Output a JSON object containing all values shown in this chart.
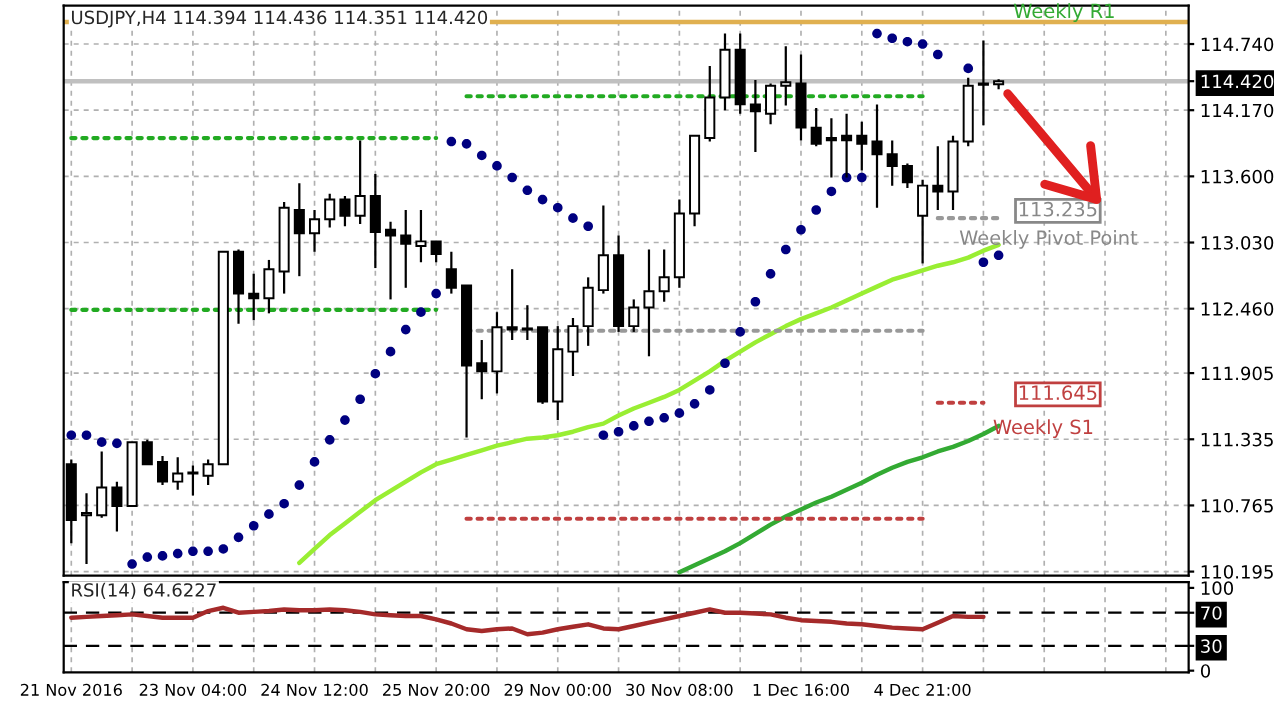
{
  "chart_data": [
    {
      "type": "candlestick",
      "title": "USDJPY,H4 114.394 114.436 114.351 114.420",
      "categories": [
        null,
        null,
        null,
        null,
        null,
        null,
        null,
        null,
        null,
        null,
        null,
        null,
        null,
        null,
        null,
        null,
        null,
        null,
        null,
        null,
        null,
        null,
        null,
        null,
        null,
        null,
        null,
        null,
        null,
        null,
        null,
        null,
        null,
        null,
        null,
        null,
        null,
        null,
        null,
        null,
        null,
        null,
        null,
        null,
        null,
        null,
        null,
        null,
        null,
        null,
        null,
        null,
        null,
        null,
        null,
        null,
        null,
        null,
        null,
        null,
        null,
        null,
        null,
        null,
        null,
        null,
        null,
        null,
        null,
        null,
        null,
        null,
        null,
        null
      ],
      "ohlc": [
        [
          111.12,
          111.16,
          110.44,
          110.64
        ],
        [
          110.68,
          110.87,
          110.26,
          110.7
        ],
        [
          110.68,
          111.23,
          110.66,
          110.92
        ],
        [
          110.92,
          110.97,
          110.54,
          110.76
        ],
        [
          110.76,
          111.31,
          110.76,
          111.31
        ],
        [
          111.31,
          111.33,
          111.12,
          111.12
        ],
        [
          111.14,
          111.19,
          110.94,
          110.97
        ],
        [
          110.97,
          111.18,
          110.9,
          111.04
        ],
        [
          111.04,
          111.11,
          110.85,
          111.05
        ],
        [
          111.02,
          111.16,
          110.94,
          111.12
        ],
        [
          111.12,
          112.95,
          111.12,
          112.95
        ],
        [
          112.95,
          112.97,
          112.33,
          112.59
        ],
        [
          112.59,
          112.76,
          112.36,
          112.55
        ],
        [
          112.55,
          112.88,
          112.42,
          112.8
        ],
        [
          112.78,
          113.38,
          112.59,
          113.33
        ],
        [
          113.31,
          113.54,
          112.74,
          113.11
        ],
        [
          113.11,
          113.31,
          112.95,
          113.23
        ],
        [
          113.23,
          113.45,
          113.16,
          113.4
        ],
        [
          113.4,
          113.43,
          113.17,
          113.26
        ],
        [
          113.26,
          113.91,
          113.19,
          113.43
        ],
        [
          113.43,
          113.62,
          112.81,
          113.12
        ],
        [
          113.14,
          113.21,
          112.54,
          113.09
        ],
        [
          113.09,
          113.31,
          112.64,
          113.02
        ],
        [
          113.0,
          113.31,
          112.86,
          113.04
        ],
        [
          113.04,
          113.04,
          112.86,
          112.93
        ],
        [
          112.8,
          112.95,
          112.59,
          112.64
        ],
        [
          112.66,
          112.66,
          111.35,
          111.97
        ],
        [
          111.99,
          112.19,
          111.68,
          111.92
        ],
        [
          111.92,
          112.43,
          111.73,
          112.3
        ],
        [
          112.3,
          112.8,
          112.19,
          112.28
        ],
        [
          112.28,
          112.49,
          112.19,
          112.29
        ],
        [
          112.3,
          112.3,
          111.64,
          111.66
        ],
        [
          111.66,
          112.31,
          111.5,
          112.11
        ],
        [
          112.09,
          112.38,
          111.88,
          112.31
        ],
        [
          112.31,
          112.73,
          112.14,
          112.64
        ],
        [
          112.62,
          113.35,
          112.59,
          112.92
        ],
        [
          112.92,
          113.09,
          112.26,
          112.31
        ],
        [
          112.31,
          112.54,
          112.26,
          112.47
        ],
        [
          112.47,
          112.97,
          112.05,
          112.61
        ],
        [
          112.61,
          112.97,
          112.52,
          112.73
        ],
        [
          112.73,
          113.4,
          112.64,
          113.28
        ],
        [
          113.28,
          113.95,
          113.17,
          113.95
        ],
        [
          113.93,
          114.55,
          113.9,
          114.28
        ],
        [
          114.28,
          114.83,
          114.17,
          114.69
        ],
        [
          114.69,
          114.83,
          114.14,
          114.22
        ],
        [
          114.22,
          114.43,
          113.81,
          114.16
        ],
        [
          114.14,
          114.4,
          114.05,
          114.38
        ],
        [
          114.38,
          114.72,
          114.21,
          114.41
        ],
        [
          114.4,
          114.65,
          113.91,
          114.02
        ],
        [
          114.02,
          114.19,
          113.86,
          113.88
        ],
        [
          113.93,
          114.1,
          113.59,
          113.91
        ],
        [
          113.95,
          114.14,
          113.59,
          113.91
        ],
        [
          113.95,
          114.07,
          113.65,
          113.88
        ],
        [
          113.9,
          114.22,
          113.33,
          113.79
        ],
        [
          113.79,
          113.91,
          113.52,
          113.69
        ],
        [
          113.69,
          113.71,
          113.5,
          113.55
        ],
        [
          113.26,
          113.57,
          112.85,
          113.52
        ],
        [
          113.52,
          113.86,
          113.31,
          113.47
        ],
        [
          113.47,
          113.95,
          113.31,
          113.9
        ],
        [
          113.9,
          114.45,
          113.86,
          114.38
        ],
        [
          114.4,
          114.77,
          114.04,
          114.39
        ],
        [
          114.394,
          114.436,
          114.351,
          114.42
        ],
        null,
        null,
        null,
        null,
        null,
        null,
        null,
        null,
        null,
        null,
        null,
        null
      ],
      "ylim": [
        110.16,
        115.07
      ],
      "yticks": [
        {
          "value": 114.74,
          "label": "114.740"
        },
        {
          "value": 114.42,
          "label": "114.420"
        },
        {
          "value": 114.17,
          "label": "114.170"
        },
        {
          "value": 113.6,
          "label": "113.600"
        },
        {
          "value": 113.03,
          "label": "113.030"
        },
        {
          "value": 112.46,
          "label": "112.460"
        },
        {
          "value": 111.905,
          "label": "111.905"
        },
        {
          "value": 111.335,
          "label": "111.335"
        },
        {
          "value": 110.765,
          "label": "110.765"
        },
        {
          "value": 110.195,
          "label": "110.195"
        }
      ],
      "grid": true,
      "tick_labels": "y",
      "series": [
        {
          "type": "scatter",
          "color": "#000080",
          "marker": "circle",
          "values": [
            111.37,
            111.37,
            111.31,
            111.3,
            110.26,
            110.32,
            110.33,
            110.35,
            110.37,
            110.37,
            110.39,
            110.49,
            110.59,
            110.69,
            110.78,
            110.94,
            111.14,
            111.33,
            111.5,
            111.68,
            111.9,
            112.09,
            112.28,
            112.43,
            112.59,
            113.9,
            113.88,
            113.78,
            113.69,
            113.59,
            113.48,
            113.4,
            113.33,
            113.24,
            113.17,
            111.37,
            111.4,
            111.45,
            111.49,
            111.52,
            111.56,
            111.64,
            111.76,
            111.99,
            112.26,
            112.52,
            112.76,
            112.97,
            113.14,
            113.31,
            113.47,
            113.59,
            113.59,
            114.83,
            114.79,
            114.76,
            114.74,
            114.65,
            null,
            114.53,
            112.86,
            112.92,
            null,
            null,
            null,
            null,
            null,
            null,
            null,
            null,
            null,
            null,
            null,
            null
          ]
        },
        {
          "type": "line",
          "color": "#99ee33",
          "values": [
            null,
            null,
            null,
            null,
            null,
            null,
            null,
            null,
            null,
            null,
            null,
            null,
            null,
            null,
            null,
            110.27,
            110.39,
            110.51,
            110.61,
            110.71,
            110.81,
            110.89,
            110.97,
            111.05,
            111.12,
            111.16,
            111.2,
            111.24,
            111.28,
            111.31,
            111.34,
            111.35,
            111.37,
            111.4,
            111.44,
            111.47,
            111.54,
            111.6,
            111.65,
            111.7,
            111.76,
            111.84,
            111.92,
            112.01,
            112.09,
            112.17,
            112.24,
            112.31,
            112.37,
            112.42,
            112.47,
            112.53,
            112.59,
            112.65,
            112.71,
            112.75,
            112.79,
            112.83,
            112.86,
            112.9,
            112.96,
            113.01,
            null,
            null,
            null,
            null,
            null,
            null,
            null,
            null,
            null,
            null,
            null,
            null
          ]
        },
        {
          "type": "line",
          "color": "#33aa33",
          "values": [
            null,
            null,
            null,
            null,
            null,
            null,
            null,
            null,
            null,
            null,
            null,
            null,
            null,
            null,
            null,
            null,
            null,
            null,
            null,
            null,
            null,
            null,
            null,
            null,
            null,
            null,
            null,
            null,
            null,
            null,
            null,
            null,
            null,
            null,
            null,
            null,
            null,
            null,
            null,
            null,
            110.19,
            110.25,
            110.31,
            110.37,
            110.44,
            110.52,
            110.6,
            110.67,
            110.73,
            110.79,
            110.84,
            110.9,
            110.96,
            111.03,
            111.09,
            111.14,
            111.18,
            111.23,
            111.27,
            111.32,
            111.38,
            111.45,
            null,
            null,
            null,
            null,
            null,
            null,
            null,
            null,
            null,
            null,
            null,
            null
          ]
        },
        {
          "type": "line",
          "color": "#22aa22",
          "line_style": "dotted",
          "values": [
            113.93,
            113.93,
            113.93,
            113.93,
            113.93,
            113.93,
            113.93,
            113.93,
            113.93,
            113.93,
            113.93,
            113.93,
            113.93,
            113.93,
            113.93,
            113.93,
            113.93,
            113.93,
            113.93,
            113.93,
            113.93,
            113.93,
            113.93,
            113.93,
            113.93,
            null,
            null,
            null,
            null,
            null,
            null,
            null,
            null,
            null,
            null,
            null,
            null,
            null,
            null,
            null,
            null,
            null,
            null,
            null,
            null,
            null,
            null,
            null,
            null,
            null,
            null,
            null,
            null,
            null,
            null,
            null,
            null,
            null,
            null,
            null,
            null,
            null,
            null,
            null,
            null,
            null,
            null,
            null,
            null,
            null,
            null,
            null,
            null,
            null
          ]
        },
        {
          "type": "line",
          "color": "#22aa22",
          "line_style": "dotted",
          "values": [
            112.45,
            112.45,
            112.45,
            112.45,
            112.45,
            112.45,
            112.45,
            112.45,
            112.45,
            112.45,
            112.45,
            112.45,
            112.45,
            112.45,
            112.45,
            112.45,
            112.45,
            112.45,
            112.45,
            112.45,
            112.45,
            112.45,
            112.45,
            112.45,
            112.45,
            null,
            null,
            null,
            null,
            null,
            null,
            null,
            null,
            null,
            null,
            null,
            null,
            null,
            null,
            null,
            null,
            null,
            null,
            null,
            null,
            null,
            null,
            null,
            null,
            null,
            null,
            null,
            null,
            null,
            null,
            null,
            null,
            null,
            null,
            null,
            null,
            null,
            null,
            null,
            null,
            null,
            null,
            null,
            null,
            null,
            null,
            null,
            null,
            null
          ]
        },
        {
          "type": "line",
          "color": "#22aa22",
          "line_style": "dotted",
          "values": [
            null,
            null,
            null,
            null,
            null,
            null,
            null,
            null,
            null,
            null,
            null,
            null,
            null,
            null,
            null,
            null,
            null,
            null,
            null,
            null,
            null,
            null,
            null,
            null,
            null,
            null,
            114.29,
            114.29,
            114.29,
            114.29,
            114.29,
            114.29,
            114.29,
            114.29,
            114.29,
            114.29,
            114.29,
            114.29,
            114.29,
            114.29,
            114.29,
            114.29,
            114.29,
            114.29,
            114.29,
            114.29,
            114.29,
            114.29,
            114.29,
            114.29,
            114.29,
            114.29,
            114.29,
            114.29,
            114.29,
            114.29,
            114.29,
            null,
            null,
            null,
            null,
            null,
            null,
            null,
            null,
            null,
            null,
            null,
            null,
            null,
            null,
            null,
            null,
            null
          ]
        },
        {
          "type": "line",
          "color": "#999999",
          "line_style": "dotted",
          "values": [
            null,
            null,
            null,
            null,
            null,
            null,
            null,
            null,
            null,
            null,
            null,
            null,
            null,
            null,
            null,
            null,
            null,
            null,
            null,
            null,
            null,
            null,
            null,
            null,
            null,
            null,
            112.27,
            112.27,
            112.27,
            112.27,
            112.27,
            112.27,
            112.27,
            112.27,
            112.27,
            112.27,
            112.27,
            112.27,
            112.27,
            112.27,
            112.27,
            112.27,
            112.27,
            112.27,
            112.27,
            112.27,
            112.27,
            112.27,
            112.27,
            112.27,
            112.27,
            112.27,
            112.27,
            112.27,
            112.27,
            112.27,
            112.27,
            null,
            null,
            null,
            null,
            null,
            null,
            null,
            null,
            null,
            null,
            null,
            null,
            null,
            null,
            null,
            null,
            null
          ]
        },
        {
          "type": "line",
          "color": "#c04040",
          "line_style": "dotted",
          "values": [
            null,
            null,
            null,
            null,
            null,
            null,
            null,
            null,
            null,
            null,
            null,
            null,
            null,
            null,
            null,
            null,
            null,
            null,
            null,
            null,
            null,
            null,
            null,
            null,
            null,
            null,
            110.65,
            110.65,
            110.65,
            110.65,
            110.65,
            110.65,
            110.65,
            110.65,
            110.65,
            110.65,
            110.65,
            110.65,
            110.65,
            110.65,
            110.65,
            110.65,
            110.65,
            110.65,
            110.65,
            110.65,
            110.65,
            110.65,
            110.65,
            110.65,
            110.65,
            110.65,
            110.65,
            110.65,
            110.65,
            110.65,
            110.65,
            null,
            null,
            null,
            null,
            null,
            null,
            null,
            null,
            null,
            null,
            null,
            null,
            null,
            null,
            null,
            null,
            null
          ]
        },
        {
          "type": "line",
          "color": "#999999",
          "line_style": "dotted",
          "values": [
            null,
            null,
            null,
            null,
            null,
            null,
            null,
            null,
            null,
            null,
            null,
            null,
            null,
            null,
            null,
            null,
            null,
            null,
            null,
            null,
            null,
            null,
            null,
            null,
            null,
            null,
            null,
            null,
            null,
            null,
            null,
            null,
            null,
            null,
            null,
            null,
            null,
            null,
            null,
            null,
            null,
            null,
            null,
            null,
            null,
            null,
            null,
            null,
            null,
            null,
            null,
            null,
            null,
            null,
            null,
            null,
            null,
            113.24,
            113.24,
            113.24,
            113.24,
            113.24,
            null,
            null,
            null,
            null,
            null,
            null,
            null,
            null,
            null,
            null,
            null,
            null
          ]
        },
        {
          "type": "line",
          "color": "#c04040",
          "line_style": "dotted",
          "values": [
            null,
            null,
            null,
            null,
            null,
            null,
            null,
            null,
            null,
            null,
            null,
            null,
            null,
            null,
            null,
            null,
            null,
            null,
            null,
            null,
            null,
            null,
            null,
            null,
            null,
            null,
            null,
            null,
            null,
            null,
            null,
            null,
            null,
            null,
            null,
            null,
            null,
            null,
            null,
            null,
            null,
            null,
            null,
            null,
            null,
            null,
            null,
            null,
            null,
            null,
            null,
            null,
            null,
            null,
            null,
            null,
            null,
            111.65,
            111.65,
            111.65,
            111.65,
            null,
            null,
            null,
            null,
            null,
            null,
            null,
            null,
            null,
            null,
            null,
            null,
            null
          ]
        }
      ],
      "ref_lines": [
        {
          "axis": "y",
          "value": 114.93,
          "label": "Weekly R1",
          "color": "#e0b050",
          "line_style": "solid"
        },
        {
          "axis": "y",
          "value": 114.42,
          "label": null,
          "color": "#c0c0c0",
          "line_style": "solid"
        }
      ],
      "annotations": [
        "Weekly Pivot Point",
        "113.235",
        "111.645",
        "Weekly S1"
      ]
    },
    {
      "type": "line",
      "title": "RSI(14) 64.6227",
      "categories": [
        "21 Nov 2016",
        null,
        null,
        null,
        null,
        null,
        null,
        null,
        "23 Nov 04:00",
        null,
        null,
        null,
        null,
        null,
        null,
        null,
        "24 Nov 12:00",
        null,
        null,
        null,
        null,
        null,
        null,
        null,
        "25 Nov 20:00",
        null,
        null,
        null,
        null,
        null,
        null,
        null,
        "29 Nov 00:00",
        null,
        null,
        null,
        null,
        null,
        null,
        null,
        "30 Nov 08:00",
        null,
        null,
        null,
        null,
        null,
        null,
        null,
        "1 Dec 16:00",
        null,
        null,
        null,
        null,
        null,
        null,
        null,
        "4 Dec 21:00",
        null,
        null,
        null,
        null,
        null,
        null,
        null,
        null,
        null,
        null,
        null,
        null,
        null,
        null,
        null,
        null,
        null
      ],
      "series": [
        {
          "color": "#a52a2a",
          "values": [
            64,
            65,
            66,
            67,
            68,
            66,
            64,
            64,
            64,
            72,
            76,
            70,
            71,
            72,
            74,
            73,
            73,
            74,
            73,
            71,
            68,
            67,
            66,
            66,
            62,
            57,
            50,
            48,
            50,
            51,
            44,
            46,
            50,
            53,
            56,
            51,
            50,
            54,
            58,
            62,
            66,
            70,
            74,
            70,
            70,
            69,
            68,
            64,
            61,
            60,
            59,
            57,
            56,
            54,
            52,
            51,
            50,
            58,
            66,
            65,
            65,
            null,
            null,
            null,
            null,
            null,
            null,
            null,
            null,
            null,
            null,
            null,
            null,
            null
          ]
        }
      ],
      "ylim": [
        -2,
        107
      ],
      "yticks": [
        0,
        30,
        70,
        100
      ],
      "grid": "x",
      "ref_lines": [
        {
          "axis": "y",
          "value": 70,
          "label": null,
          "color": "#000000",
          "line_style": "dashed"
        },
        {
          "axis": "y",
          "value": 30,
          "label": null,
          "color": "#000000",
          "line_style": "dashed"
        }
      ]
    }
  ]
}
